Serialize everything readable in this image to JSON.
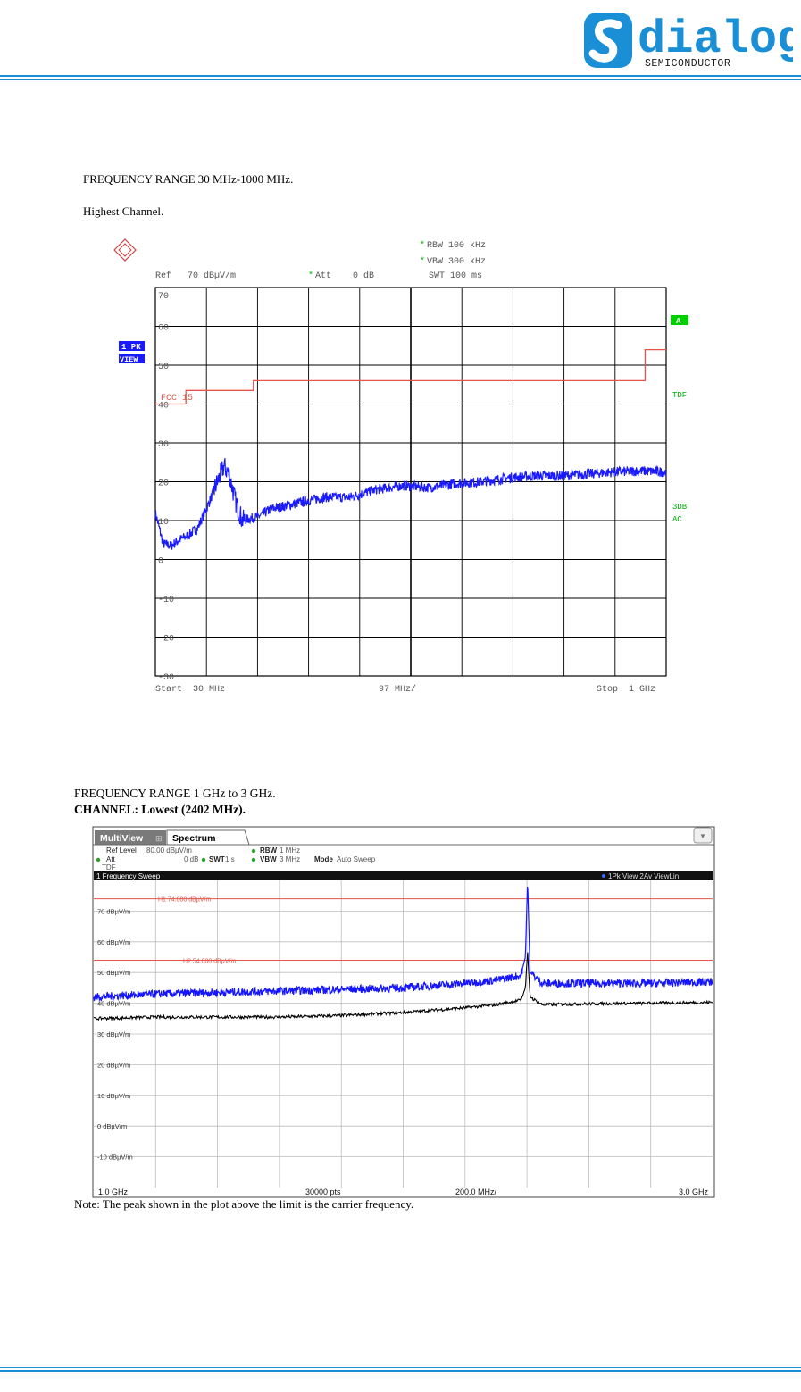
{
  "header": {
    "logo_word": "dialog",
    "logo_subtitle": "SEMICONDUCTOR"
  },
  "section1": {
    "title": "FREQUENCY RANGE 30 MHz-1000 MHz.",
    "subtitle": "Highest Channel."
  },
  "plot1": {
    "rbw": "RBW  100 kHz",
    "vbw": "VBW  300 kHz",
    "swt": "SWT  100 ms",
    "ref": "Ref   70 dBµV/m",
    "att": "Att    0 dB",
    "trace_label": "1 PK",
    "view_label": "VIEW",
    "right_tag_a": "A",
    "right_tag_tdf": "TDF",
    "right_tag_3db": "3DB",
    "right_tag_ac": "AC",
    "limit_label": "FCC 15",
    "x_start": "Start  30 MHz",
    "x_div": "97 MHz/",
    "x_stop": "Stop  1 GHz",
    "colors": {
      "trace": "#1a1aff",
      "limit": "#e8544a",
      "grid": "#000000",
      "status": "#00b000"
    }
  },
  "section2": {
    "title": "FREQUENCY RANGE 1 GHz to 3 GHz.",
    "channel": "CHANNEL: Lowest (2402 MHz)."
  },
  "plot2": {
    "tab_multiview": "MultiView",
    "tab_spectrum": "Spectrum",
    "dropdown_icon": "chevron-down-icon",
    "ref_level": "Ref Level",
    "ref_level_value": "80.00 dBµV/m",
    "att": "Att",
    "att_value": "0 dB",
    "swt": "SWT",
    "swt_value": "1 s",
    "rbw": "RBW",
    "rbw_value": "1 MHz",
    "vbw": "VBW",
    "vbw_value": "3 MHz",
    "mode": "Mode",
    "mode_value": "Auto Sweep",
    "tdf": "TDF",
    "window_title": "1 Frequency Sweep",
    "trace_legend": "1Pk View  2Av ViewLin",
    "h1_label": "H1  74.000 dBµV/m",
    "h2_label": "H2  54.000 dBµV/m",
    "x_start": "1.0 GHz",
    "x_points": "30000 pts",
    "x_div": "200.0 MHz/",
    "x_stop": "3.0 GHz",
    "colors": {
      "peak": "#1515ff",
      "avg": "#000000",
      "limit": "#e8544a",
      "titlebar": "#111111"
    }
  },
  "note": "Note: The peak shown in the plot above the limit is the carrier frequency.",
  "chart_data": [
    {
      "type": "line",
      "xlabel": "",
      "ylabel": "",
      "xlim": [
        30,
        1000
      ],
      "ylim": [
        -30,
        70
      ],
      "y_ticks": [
        "70",
        "60",
        "50",
        "40",
        "30",
        "20",
        "10",
        "0",
        "-10",
        "-20",
        "-30"
      ],
      "grid": true,
      "series": [
        {
          "name": "1 PK",
          "x": [
            30,
            45,
            60,
            75,
            90,
            110,
            130,
            145,
            160,
            170,
            182,
            195,
            210,
            225,
            250,
            300,
            350,
            400,
            450,
            500,
            550,
            600,
            650,
            700,
            750,
            800,
            850,
            900,
            950,
            1000
          ],
          "values": [
            12,
            4,
            3.5,
            5,
            6,
            8,
            14,
            19,
            24,
            22,
            15,
            10,
            10.5,
            11,
            13,
            14.5,
            16,
            16,
            18,
            19,
            18.5,
            19.5,
            20,
            21,
            21.5,
            21.5,
            22,
            22.5,
            22.8,
            22.5
          ]
        },
        {
          "name": "FCC 15",
          "x": [
            30,
            88,
            88,
            216,
            216,
            960,
            960,
            1000
          ],
          "values": [
            40,
            40,
            43.5,
            43.5,
            46,
            46,
            54,
            54
          ]
        }
      ]
    },
    {
      "type": "line",
      "xlabel": "",
      "ylabel": "",
      "xlim": [
        1.0,
        3.0
      ],
      "ylim": [
        -20,
        80
      ],
      "y_ticks": [
        "70 dBµV/m",
        "60 dBµV/m",
        "50 dBµV/m",
        "40 dBµV/m",
        "30 dBµV/m",
        "20 dBµV/m",
        "10 dBµV/m",
        "0 dBµV/m",
        "-10 dBµV/m"
      ],
      "grid": true,
      "series": [
        {
          "name": "1Pk View",
          "x": [
            1.0,
            1.2,
            1.4,
            1.6,
            1.8,
            2.0,
            2.2,
            2.3,
            2.38,
            2.395,
            2.402,
            2.41,
            2.45,
            2.6,
            2.8,
            3.0
          ],
          "values": [
            42,
            43,
            43.5,
            44,
            44.5,
            45,
            46.5,
            47.5,
            49,
            55,
            80,
            50,
            46.5,
            46.5,
            46.5,
            47
          ]
        },
        {
          "name": "2Av ViewLin",
          "x": [
            1.0,
            1.2,
            1.4,
            1.6,
            1.8,
            2.0,
            2.2,
            2.3,
            2.38,
            2.395,
            2.402,
            2.41,
            2.45,
            2.6,
            2.8,
            3.0
          ],
          "values": [
            35,
            35.5,
            35.5,
            35.5,
            36,
            37,
            38.5,
            39.5,
            41,
            45,
            57,
            42,
            39.5,
            39.8,
            40,
            40.3
          ]
        }
      ],
      "annotations": [
        {
          "label": "H1  74.000 dBµV/m",
          "y": 74
        },
        {
          "label": "H2  54.000 dBµV/m",
          "y": 54
        }
      ]
    }
  ]
}
